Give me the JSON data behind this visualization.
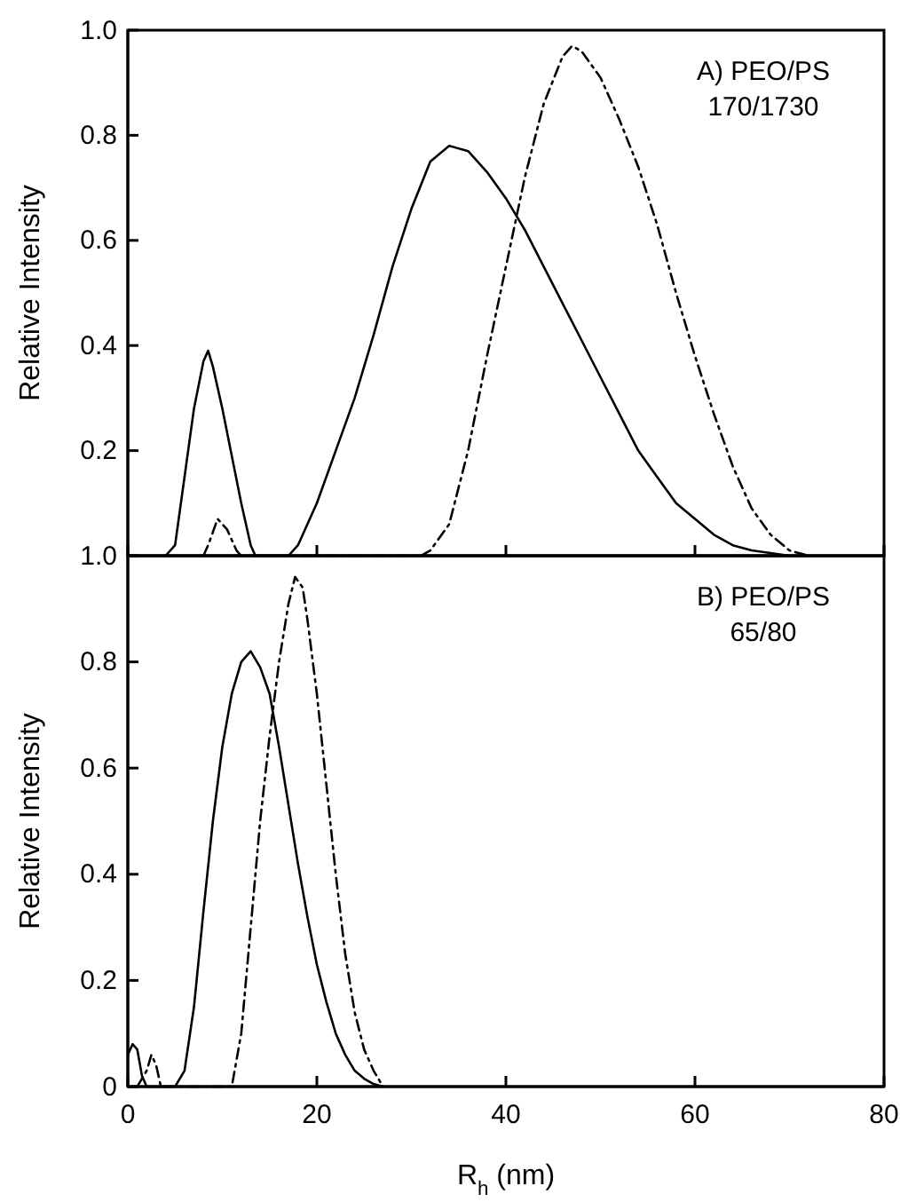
{
  "chart_data": [
    {
      "type": "line",
      "ylabel": "Relative Intensity",
      "annotations": [
        "A) PEO/PS",
        "170/1730"
      ],
      "xlim": [
        0,
        80
      ],
      "xticks": [
        0,
        20,
        40,
        60,
        80
      ],
      "ylim": [
        0,
        1.0
      ],
      "yticks": [
        0.2,
        0.4,
        0.6,
        0.8,
        {
          "value": 1,
          "label": "1.0"
        }
      ],
      "tick_labels": "y",
      "marker": "none",
      "series": [
        {
          "color": "#000000",
          "line_style": "solid",
          "x": [
            4,
            5,
            6,
            7,
            8,
            8.5,
            9,
            10,
            11,
            12,
            13,
            13.5,
            17,
            18,
            20,
            22,
            24,
            26,
            28,
            30,
            32,
            34,
            36,
            38,
            40,
            42,
            44,
            46,
            48,
            50,
            52,
            54,
            56,
            58,
            60,
            62,
            64,
            66,
            68,
            70
          ],
          "values": [
            0,
            0.02,
            0.15,
            0.28,
            0.37,
            0.39,
            0.36,
            0.28,
            0.19,
            0.1,
            0.02,
            0,
            0,
            0.02,
            0.1,
            0.2,
            0.3,
            0.42,
            0.55,
            0.66,
            0.75,
            0.78,
            0.77,
            0.73,
            0.68,
            0.62,
            0.55,
            0.48,
            0.41,
            0.34,
            0.27,
            0.2,
            0.15,
            0.1,
            0.07,
            0.04,
            0.02,
            0.01,
            0.005,
            0
          ]
        },
        {
          "color": "#000000",
          "line_style": "dashed",
          "x": [
            8,
            8.5,
            9.5,
            10.5,
            11.5,
            12,
            31,
            32,
            34,
            36,
            38,
            40,
            42,
            44,
            46,
            47,
            48,
            50,
            52,
            54,
            56,
            58,
            60,
            62,
            64,
            66,
            68,
            70,
            72
          ],
          "values": [
            0,
            0.02,
            0.07,
            0.05,
            0.01,
            0,
            0,
            0.01,
            0.06,
            0.2,
            0.38,
            0.55,
            0.72,
            0.86,
            0.95,
            0.97,
            0.96,
            0.91,
            0.83,
            0.74,
            0.63,
            0.5,
            0.38,
            0.27,
            0.17,
            0.09,
            0.04,
            0.01,
            0
          ]
        }
      ]
    },
    {
      "type": "line",
      "xlabel": "R$_{h}$ (nm)",
      "ylabel": "Relative Intensity",
      "annotations": [
        "B) PEO/PS",
        "65/80"
      ],
      "xlim": [
        0,
        80
      ],
      "xticks": [
        0,
        20,
        40,
        60,
        80
      ],
      "ylim": [
        0,
        1.0
      ],
      "yticks": [
        0,
        0.2,
        0.4,
        0.6,
        0.8,
        {
          "value": 1,
          "label": "1.0"
        }
      ],
      "marker": "none",
      "series": [
        {
          "color": "#000000",
          "line_style": "solid",
          "x": [
            0,
            0.5,
            1,
            1.5,
            2,
            5,
            6,
            7,
            8,
            9,
            10,
            11,
            12,
            13,
            14,
            15,
            16,
            17,
            18,
            19,
            20,
            21,
            22,
            23,
            24,
            25,
            26,
            27
          ],
          "values": [
            0.06,
            0.08,
            0.07,
            0.02,
            0,
            0,
            0.03,
            0.15,
            0.33,
            0.5,
            0.64,
            0.74,
            0.8,
            0.82,
            0.79,
            0.74,
            0.64,
            0.53,
            0.42,
            0.32,
            0.23,
            0.16,
            0.1,
            0.06,
            0.03,
            0.015,
            0.005,
            0
          ]
        },
        {
          "color": "#000000",
          "line_style": "dashed",
          "x": [
            1,
            2,
            2.5,
            3,
            3.5,
            11,
            12,
            13,
            14,
            15,
            16,
            17,
            17.7,
            18.5,
            19,
            20,
            21,
            22,
            23,
            24,
            25,
            26,
            27
          ],
          "values": [
            0,
            0.03,
            0.06,
            0.04,
            0,
            0,
            0.1,
            0.3,
            0.5,
            0.66,
            0.8,
            0.91,
            0.96,
            0.94,
            0.88,
            0.74,
            0.57,
            0.4,
            0.25,
            0.14,
            0.07,
            0.03,
            0
          ]
        }
      ]
    }
  ]
}
